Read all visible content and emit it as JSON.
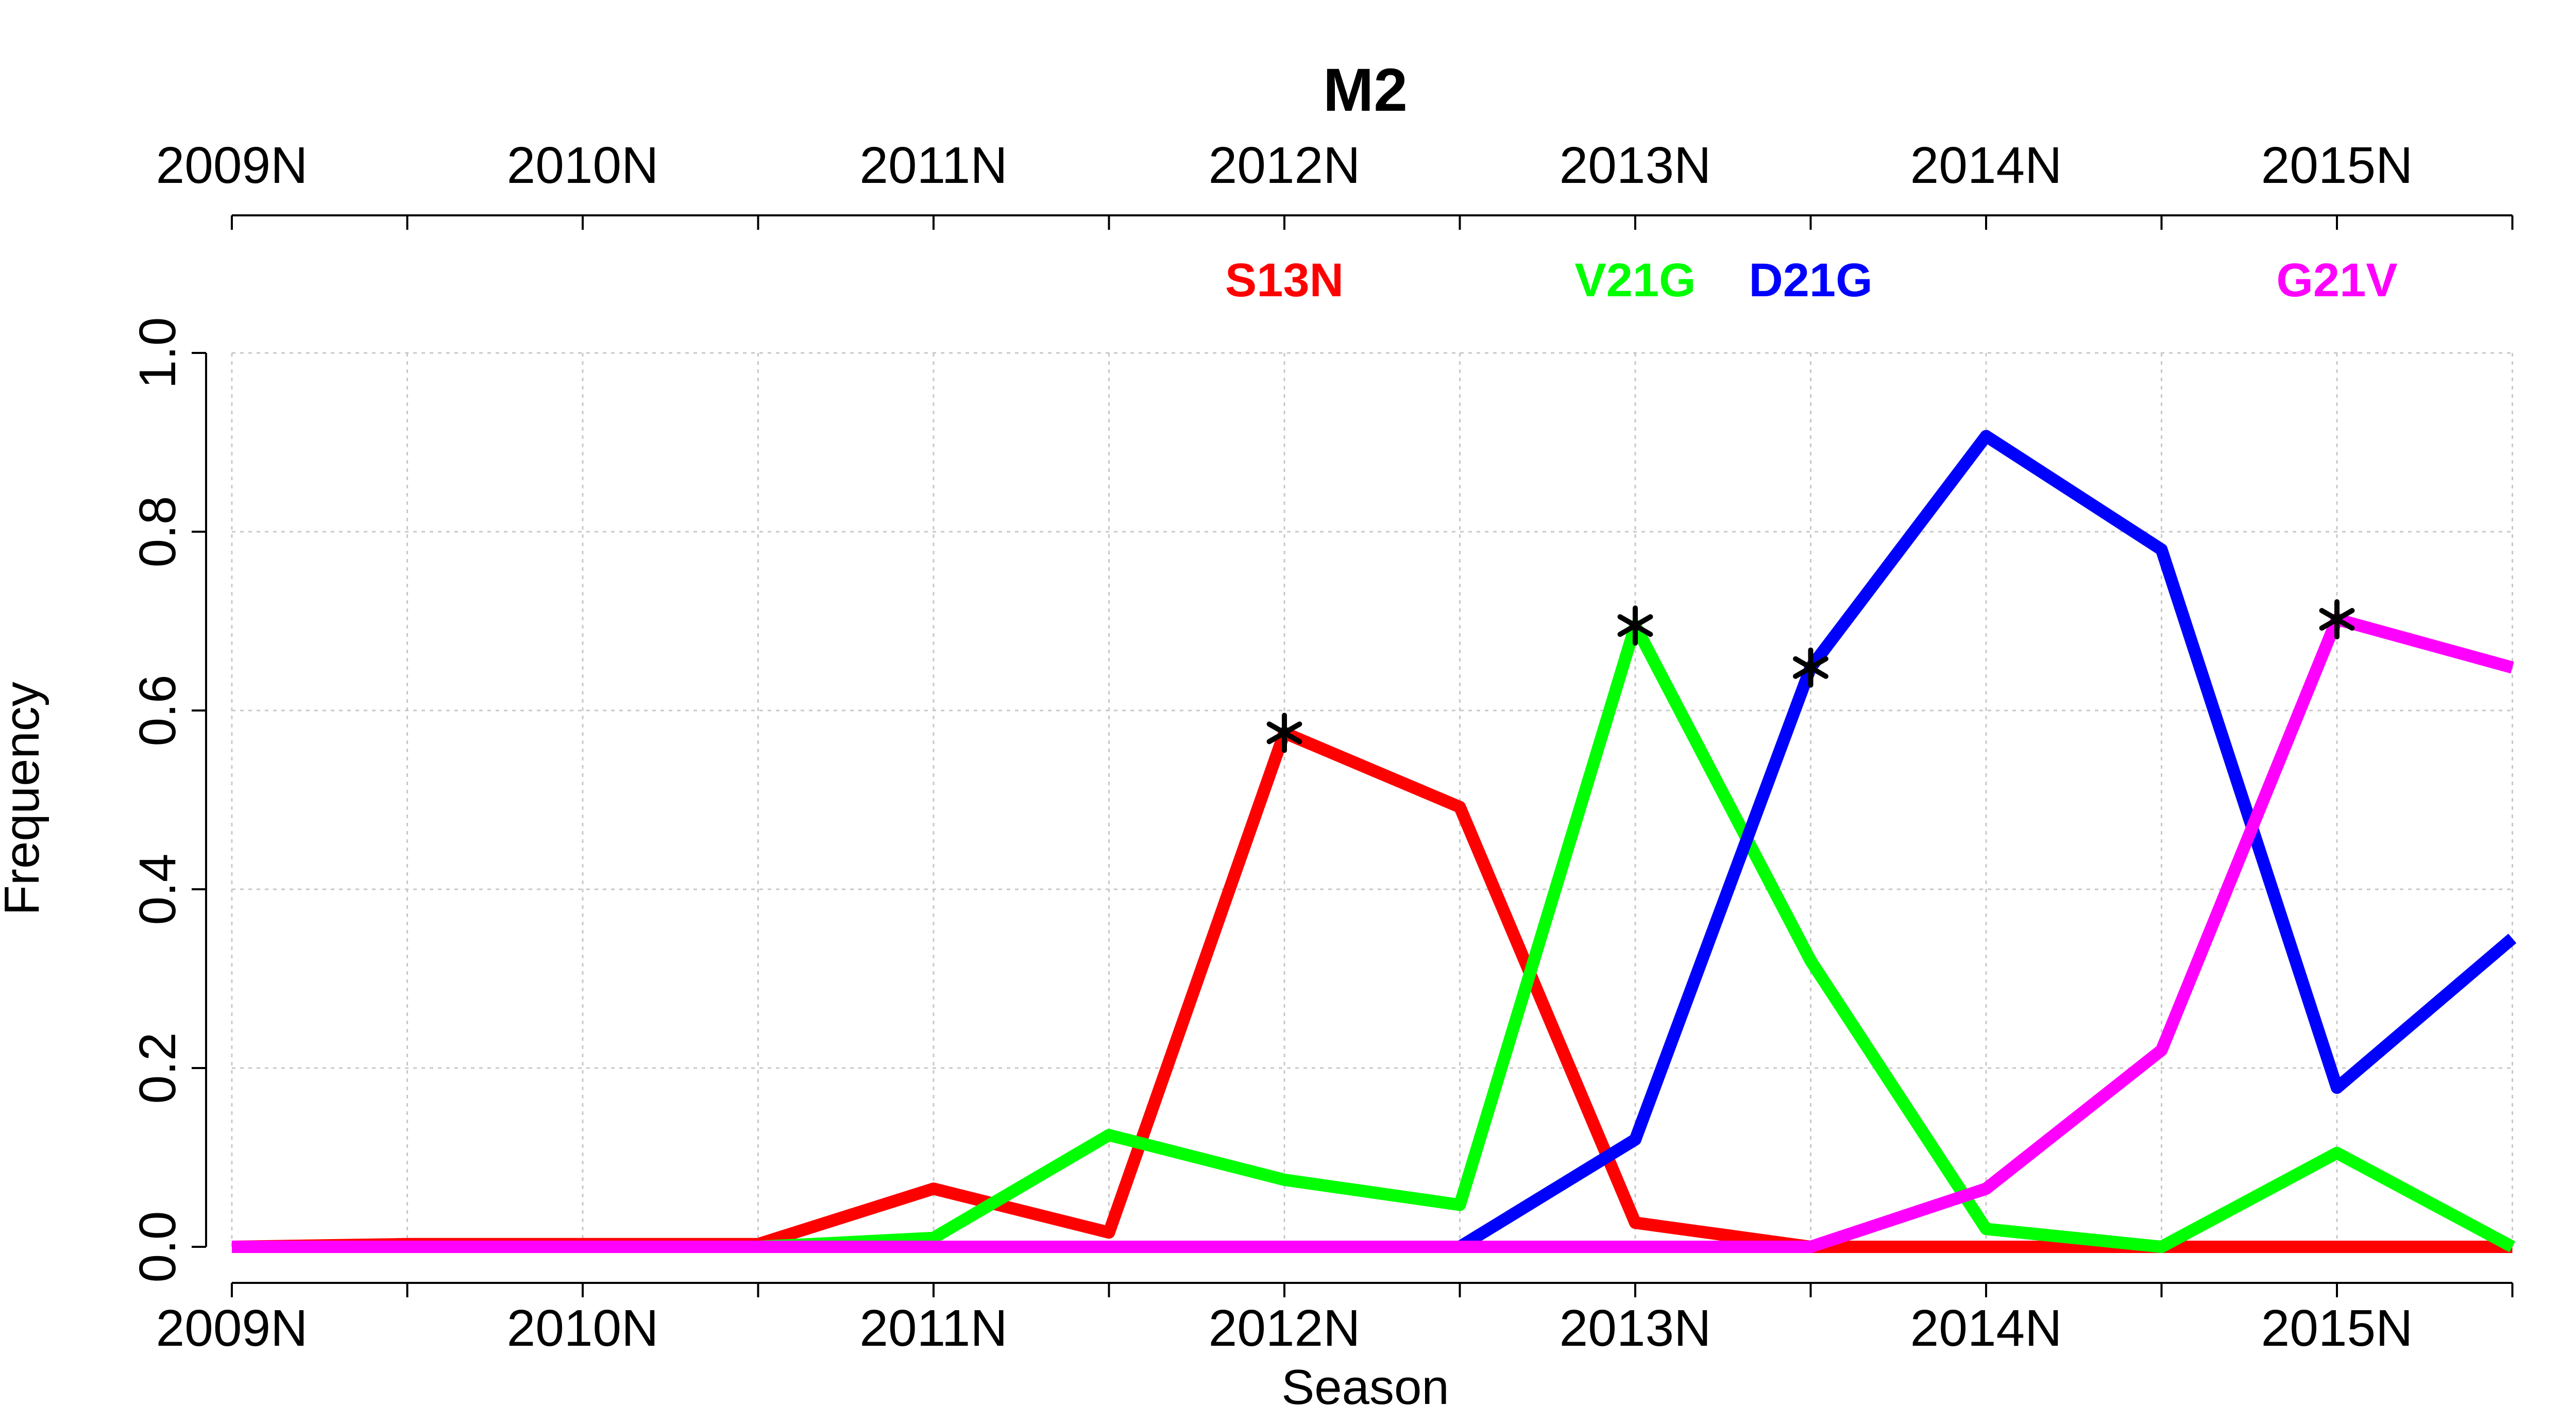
{
  "chart_data": {
    "type": "line",
    "title": "M2",
    "xlabel": "Season",
    "ylabel": "Frequency",
    "x": [
      "2009N",
      "2009.5",
      "2010N",
      "2010.5",
      "2011N",
      "2011.5",
      "2012N",
      "2012.5",
      "2013N",
      "2013.5",
      "2014N",
      "2014.5",
      "2015N",
      "2015.5"
    ],
    "x_tick_labels": [
      "2009N",
      "2010N",
      "2011N",
      "2012N",
      "2013N",
      "2014N",
      "2015N"
    ],
    "y_ticks": [
      "0.0",
      "0.2",
      "0.4",
      "0.6",
      "0.8",
      "1.0"
    ],
    "ylim": [
      0,
      1
    ],
    "grid": true,
    "series": [
      {
        "name": "S13N",
        "color": "#ff0000",
        "values": [
          0.0,
          0.003,
          0.003,
          0.003,
          0.065,
          0.016,
          0.575,
          0.492,
          0.027,
          0.0,
          0.0,
          0.0,
          0.0,
          0.0
        ],
        "marker_index": 6
      },
      {
        "name": "V21G",
        "color": "#00ff00",
        "values": [
          0.0,
          0.0,
          0.0,
          0.0,
          0.01,
          0.125,
          0.075,
          0.047,
          0.695,
          0.32,
          0.02,
          0.0,
          0.105,
          0.0
        ],
        "marker_index": 8
      },
      {
        "name": "D21G",
        "color": "#0000ff",
        "values": [
          null,
          null,
          null,
          null,
          null,
          null,
          null,
          0.0,
          0.12,
          0.648,
          0.907,
          0.78,
          0.178,
          0.345
        ],
        "marker_index": 9
      },
      {
        "name": "G21V",
        "color": "#ff00ff",
        "values": [
          0.0,
          0.0,
          0.0,
          0.0,
          0.0,
          0.0,
          0.0,
          0.0,
          0.0,
          0.0,
          0.065,
          0.22,
          0.702,
          0.648
        ],
        "marker_index": 12
      }
    ],
    "labels_top": [
      {
        "text": "S13N",
        "color": "#ff0000",
        "at": "2012N"
      },
      {
        "text": "V21G",
        "color": "#00ff00",
        "at": "2013N"
      },
      {
        "text": "D21G",
        "color": "#0000ff",
        "at": "2013.5"
      },
      {
        "text": "G21V",
        "color": "#ff00ff",
        "at": "2015N"
      }
    ]
  }
}
